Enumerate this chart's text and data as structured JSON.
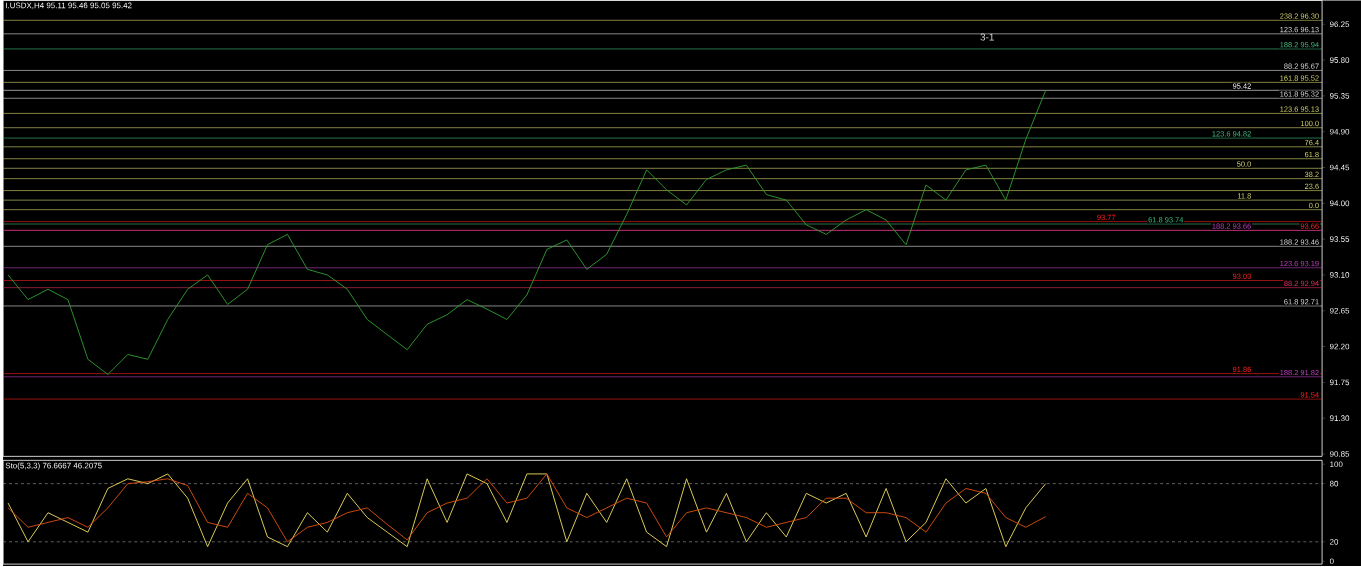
{
  "chart_data": [
    {
      "type": "line",
      "title": "I.USDX,H4 95.11 95.46 95.05 95.42",
      "tick_labels": "y",
      "categories": [
        null,
        null,
        null,
        null,
        null,
        null,
        null,
        null,
        null,
        null,
        null,
        null,
        null,
        null,
        null,
        null,
        null,
        null,
        null,
        null,
        null,
        null,
        null,
        null,
        null,
        null,
        null,
        null,
        null,
        null,
        null,
        null,
        null,
        null,
        null,
        null,
        null,
        null,
        null,
        null,
        null,
        null,
        null,
        null,
        null,
        null,
        null,
        null,
        null,
        null,
        null,
        null,
        null
      ],
      "series": [
        {
          "color": "#30a030",
          "values": [
            93.1,
            92.79,
            92.92,
            92.79,
            92.04,
            91.85,
            92.1,
            92.04,
            92.54,
            92.92,
            93.1,
            92.73,
            92.92,
            93.48,
            93.61,
            93.17,
            93.1,
            92.92,
            92.54,
            92.35,
            92.16,
            92.48,
            92.6,
            92.79,
            92.67,
            92.54,
            92.85,
            93.42,
            93.54,
            93.17,
            93.36,
            93.86,
            94.42,
            94.17,
            93.98,
            94.3,
            94.42,
            94.48,
            94.11,
            94.04,
            93.73,
            93.61,
            93.79,
            93.92,
            93.79,
            93.48,
            94.23,
            94.04,
            94.42,
            94.48,
            94.04,
            94.8,
            95.42
          ]
        }
      ],
      "ylim": [
        90.82,
        96.55
      ],
      "yticks": [
        {
          "value": 96.25,
          "label": "96.25"
        },
        {
          "value": 95.8,
          "label": "95.80"
        },
        {
          "value": 95.35,
          "label": "95.35"
        },
        {
          "value": 94.9,
          "label": "94.90"
        },
        {
          "value": 94.45,
          "label": "94.45"
        },
        {
          "value": 94.0,
          "label": "94.00"
        },
        {
          "value": 93.55,
          "label": "93.55"
        },
        {
          "value": 93.1,
          "label": "93.10"
        },
        {
          "value": 92.65,
          "label": "92.65"
        },
        {
          "value": 92.2,
          "label": "92.20"
        },
        {
          "value": 91.75,
          "label": "91.75"
        },
        {
          "value": 91.3,
          "label": "91.30"
        },
        {
          "value": 90.85,
          "label": "90.85"
        }
      ],
      "ref_lines": [
        {
          "axis": "y",
          "value": 96.3,
          "label": "238.2  96.30",
          "color": "#d8d870"
        },
        {
          "axis": "y",
          "value": 96.13,
          "label": "123.6  96.13",
          "color": "#e0e0e0"
        },
        {
          "axis": "y",
          "value": 95.94,
          "label": "188.2  95.94",
          "color": "#40c080"
        },
        {
          "axis": "y",
          "value": 95.67,
          "label": "88.2  95.67",
          "color": "#e0e0e0"
        },
        {
          "axis": "y",
          "value": 95.52,
          "label": "161.8  95.52",
          "color": "#d8d870"
        },
        {
          "axis": "y",
          "value": 95.42,
          "label": "95.42",
          "color": "#ffffff"
        },
        {
          "axis": "y",
          "value": 95.32,
          "label": "161.8  95.32",
          "color": "#e0e0e0"
        },
        {
          "axis": "y",
          "value": 95.13,
          "label": "123.6  95.13",
          "color": "#d8d870"
        },
        {
          "axis": "y",
          "value": 94.95,
          "color": "#d8d870"
        },
        {
          "axis": "y",
          "value": 94.82,
          "label": "123.6  94.82",
          "color": "#40c080"
        },
        {
          "axis": "y",
          "value": 94.71,
          "color": "#d8d870"
        },
        {
          "axis": "y",
          "value": 94.56,
          "color": "#d8d870"
        },
        {
          "axis": "y",
          "value": 94.44,
          "color": "#d8d870"
        },
        {
          "axis": "y",
          "value": 94.31,
          "color": "#d8d870"
        },
        {
          "axis": "y",
          "value": 94.16,
          "color": "#d8d870"
        },
        {
          "axis": "y",
          "value": 94.04,
          "color": "#d8d870"
        },
        {
          "axis": "y",
          "value": 93.92,
          "color": "#d8d870"
        },
        {
          "axis": "y",
          "value": 93.77,
          "label": "93.77",
          "color": "#ff2020"
        },
        {
          "axis": "y",
          "value": 93.74,
          "label": "61.8  93.74",
          "color": "#40c080"
        },
        {
          "axis": "y",
          "value": 93.66,
          "label": "93.66",
          "color": "#ff2020"
        },
        {
          "axis": "y",
          "value": 93.66,
          "label": "188.2  93.66",
          "color": "#c040c0"
        },
        {
          "axis": "y",
          "value": 93.46,
          "label": "188.2  93.46",
          "color": "#e0e0e0"
        },
        {
          "axis": "y",
          "value": 93.19,
          "label": "123.6  93.19",
          "color": "#c040c0"
        },
        {
          "axis": "y",
          "value": 93.03,
          "label": "93.03",
          "color": "#ff2020"
        },
        {
          "axis": "y",
          "value": 92.94,
          "label": "88.2  92.94",
          "color": "#e03060"
        },
        {
          "axis": "y",
          "value": 92.71,
          "label": "61.8  92.71",
          "color": "#e0e0e0"
        },
        {
          "axis": "y",
          "value": 91.86,
          "label": "91.86",
          "color": "#ff2020"
        },
        {
          "axis": "y",
          "value": 91.82,
          "label": "188.2  91.82",
          "color": "#c040c0"
        },
        {
          "axis": "y",
          "value": 91.54,
          "label": "91.54",
          "color": "#ff2020"
        }
      ],
      "annotations": [
        "3-1",
        {
          "text": "100.0",
          "y": 94.95
        },
        {
          "text": "76.4",
          "y": 94.71
        },
        {
          "text": "61.8",
          "y": 94.56
        },
        {
          "text": "50.0",
          "y": 94.44
        },
        {
          "text": "38.2",
          "y": 94.31
        },
        {
          "text": "23.6",
          "y": 94.16
        },
        {
          "text": "11.8",
          "y": 94.04
        },
        {
          "text": "0.0",
          "y": 93.92
        }
      ]
    },
    {
      "type": "line",
      "title": "Sto(5,3,3) 76.6667 46.2075",
      "tick_labels": "y",
      "categories": [
        null,
        null,
        null,
        null,
        null,
        null,
        null,
        null,
        null,
        null,
        null,
        null,
        null,
        null,
        null,
        null,
        null,
        null,
        null,
        null,
        null,
        null,
        null,
        null,
        null,
        null,
        null,
        null,
        null,
        null,
        null,
        null,
        null,
        null,
        null,
        null,
        null,
        null,
        null,
        null,
        null,
        null,
        null,
        null,
        null,
        null,
        null,
        null,
        null,
        null,
        null,
        null,
        null
      ],
      "series": [
        {
          "color": "#f0e060",
          "values": [
            60,
            20,
            50,
            40,
            30,
            75,
            85,
            80,
            90,
            65,
            15,
            60,
            85,
            25,
            15,
            50,
            30,
            70,
            45,
            30,
            15,
            85,
            40,
            90,
            80,
            40,
            90,
            90,
            20,
            70,
            40,
            85,
            30,
            15,
            85,
            30,
            70,
            20,
            50,
            25,
            70,
            60,
            70,
            25,
            75,
            20,
            40,
            85,
            60,
            75,
            15,
            55,
            80
          ]
        },
        {
          "color": "#e05010",
          "values": [
            55,
            35,
            40,
            45,
            35,
            55,
            80,
            82,
            85,
            78,
            40,
            35,
            70,
            55,
            20,
            35,
            40,
            50,
            55,
            38,
            22,
            50,
            60,
            65,
            85,
            60,
            65,
            90,
            55,
            45,
            55,
            65,
            60,
            25,
            50,
            55,
            50,
            45,
            35,
            40,
            45,
            65,
            65,
            50,
            50,
            45,
            30,
            60,
            75,
            70,
            45,
            35,
            46
          ]
        }
      ],
      "ylim": [
        -3,
        104
      ],
      "yticks": [
        0,
        20,
        80,
        100
      ],
      "ref_lines": [
        {
          "axis": "y",
          "value": 20,
          "color": "#a0a0a0",
          "line_style": "dashed"
        },
        {
          "axis": "y",
          "value": 80,
          "color": "#a0a0a0",
          "line_style": "dashed"
        }
      ]
    }
  ]
}
